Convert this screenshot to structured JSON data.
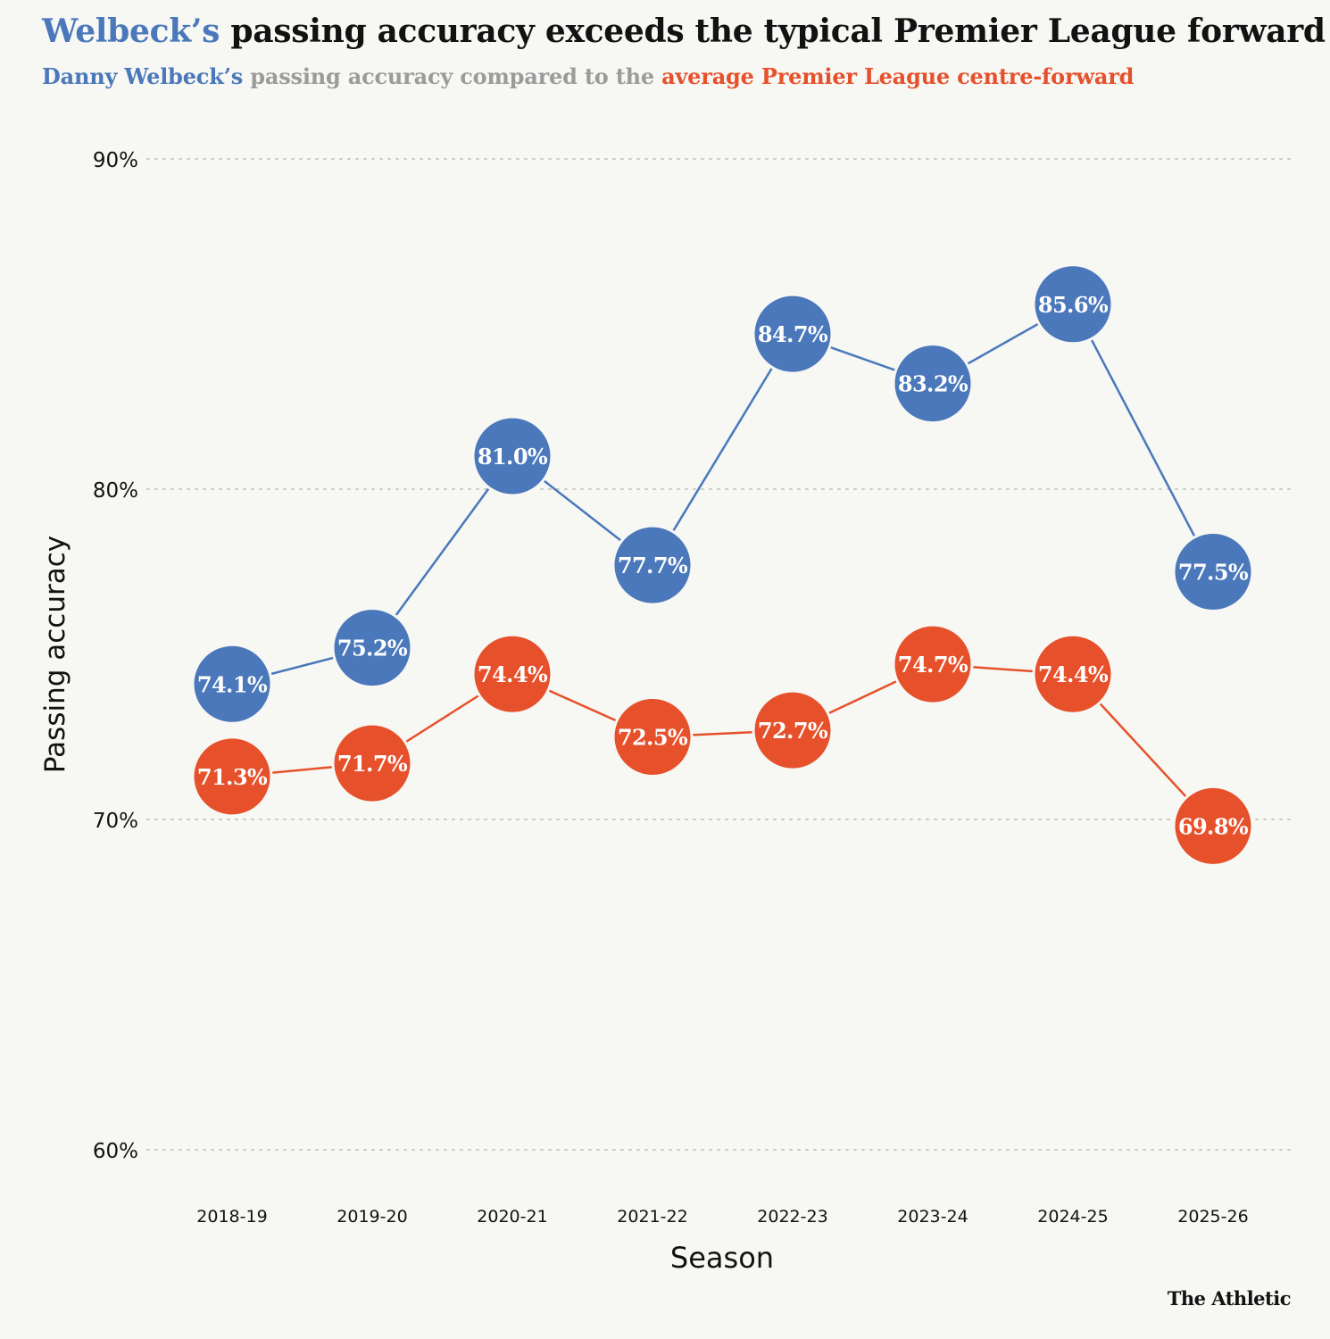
{
  "header": {
    "title_highlight": "Welbeck’s",
    "title_rest": " passing accuracy exceeds the typical Premier League forward",
    "subtitle_blue": "Danny Welbeck’s",
    "subtitle_mid": " passing accuracy compared to the ",
    "subtitle_red": "average Premier League centre-forward"
  },
  "credit": "The Athletic",
  "colors": {
    "welbeck": "#4a78ba",
    "average": "#e6512b",
    "text": "#121212",
    "grid": "#c9c9c4"
  },
  "chart_data": {
    "type": "line",
    "title": "Welbeck’s passing accuracy exceeds the typical Premier League forward",
    "xlabel": "Season",
    "ylabel": "Passing accuracy",
    "ylim": [
      60,
      90
    ],
    "yticks": [
      60,
      70,
      80,
      90
    ],
    "ytick_labels": [
      "60%",
      "70%",
      "80%",
      "90%"
    ],
    "grid": true,
    "categories": [
      "2018-19",
      "2019-20",
      "2020-21",
      "2021-22",
      "2022-23",
      "2023-24",
      "2024-25",
      "2025-26"
    ],
    "series": [
      {
        "name": "Danny Welbeck",
        "color": "#4a78ba",
        "values": [
          74.1,
          75.2,
          81.0,
          77.7,
          84.7,
          83.2,
          85.6,
          77.5
        ],
        "labels": [
          "74.1%",
          "75.2%",
          "81.0%",
          "77.7%",
          "84.7%",
          "83.2%",
          "85.6%",
          "77.5%"
        ]
      },
      {
        "name": "Average Premier League centre-forward",
        "color": "#e6512b",
        "values": [
          71.3,
          71.7,
          74.4,
          72.5,
          72.7,
          74.7,
          74.4,
          69.8
        ],
        "labels": [
          "71.3%",
          "71.7%",
          "74.4%",
          "72.5%",
          "72.7%",
          "74.7%",
          "74.4%",
          "69.8%"
        ]
      }
    ]
  }
}
